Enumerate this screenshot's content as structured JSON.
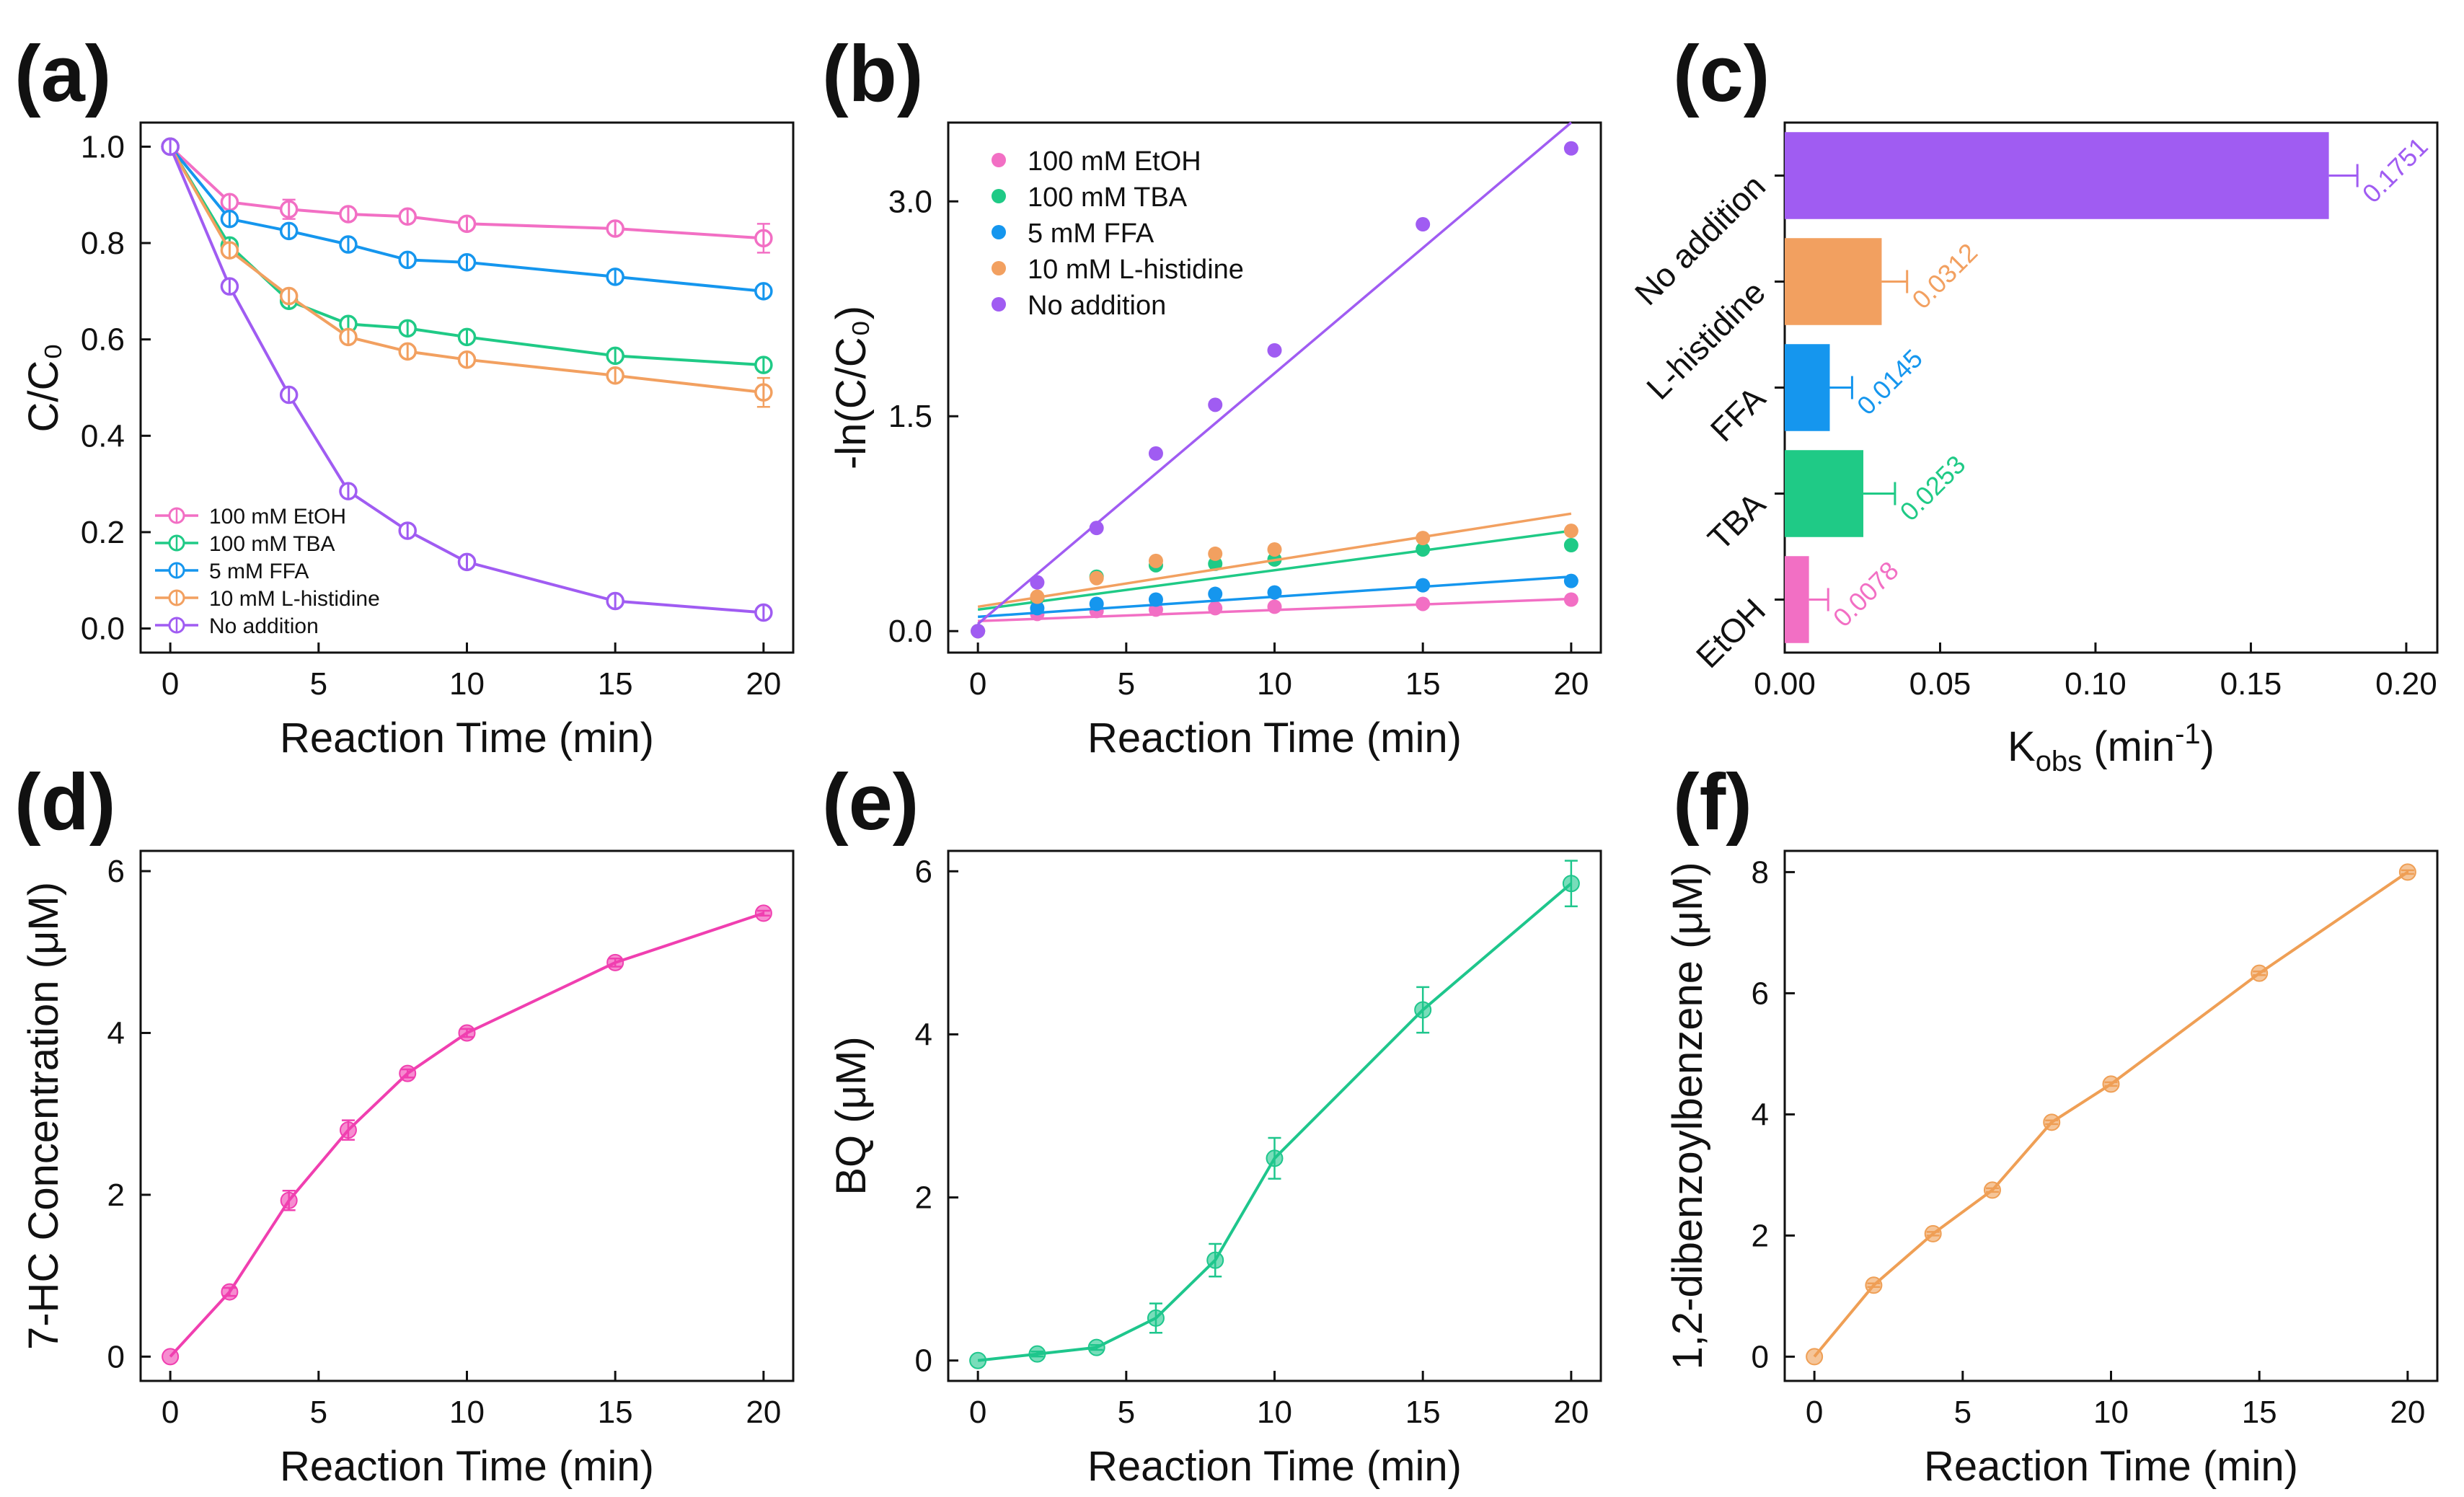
{
  "colors": {
    "etoh": "#f26fc4",
    "tba": "#1fca86",
    "ffa": "#1596ee",
    "his": "#f2a060",
    "none": "#a05cf2",
    "hc": "#f03fb0",
    "bq": "#1ec68c",
    "dbb": "#ef9f55"
  },
  "chart_data": [
    {
      "panel_label": "(a)",
      "type": "line",
      "xlabel": "Reaction Time (min)",
      "ylabel": "C/C₀",
      "xlim": [
        -1,
        21
      ],
      "ylim": [
        -0.05,
        1.05
      ],
      "xticks": [
        0,
        5,
        10,
        15,
        20
      ],
      "yticks": [
        0.0,
        0.2,
        0.4,
        0.6,
        0.8,
        1.0
      ],
      "ytick_labels": [
        "0.0",
        "0.2",
        "0.4",
        "0.6",
        "0.8",
        "1.0"
      ],
      "x": [
        0,
        2,
        4,
        6,
        8,
        10,
        15,
        20
      ],
      "series": [
        {
          "name": "100 mM EtOH",
          "color_key": "etoh",
          "values": [
            1.0,
            0.885,
            0.87,
            0.86,
            0.855,
            0.84,
            0.83,
            0.81
          ],
          "errors": [
            0,
            0.01,
            0.02,
            0.01,
            0.01,
            0.01,
            0.01,
            0.03
          ]
        },
        {
          "name": "100 mM TBA",
          "color_key": "tba",
          "values": [
            1.0,
            0.795,
            0.68,
            0.632,
            0.623,
            0.605,
            0.566,
            0.547
          ],
          "errors": [
            0,
            0.01,
            0.01,
            0.01,
            0.01,
            0.01,
            0.01,
            0.01
          ]
        },
        {
          "name": "5 mM FFA",
          "color_key": "ffa",
          "values": [
            1.0,
            0.85,
            0.825,
            0.797,
            0.765,
            0.76,
            0.73,
            0.7
          ],
          "errors": [
            0,
            0.01,
            0.01,
            0.01,
            0.01,
            0.01,
            0.01,
            0.01
          ]
        },
        {
          "name": "10 mM L-histidine",
          "color_key": "his",
          "values": [
            1.0,
            0.785,
            0.69,
            0.605,
            0.575,
            0.558,
            0.525,
            0.49
          ],
          "errors": [
            0,
            0.01,
            0.01,
            0.01,
            0.01,
            0.01,
            0.01,
            0.03
          ]
        },
        {
          "name": "No addition",
          "color_key": "none",
          "values": [
            1.0,
            0.71,
            0.485,
            0.285,
            0.203,
            0.138,
            0.057,
            0.033
          ],
          "errors": [
            0,
            0.01,
            0.01,
            0.01,
            0.01,
            0.01,
            0.01,
            0.005
          ]
        }
      ],
      "legend_position": "bottom-left"
    },
    {
      "panel_label": "(b)",
      "type": "scatter",
      "xlabel": "Reaction Time (min)",
      "ylabel": "-ln(C/C₀)",
      "xlim": [
        -1,
        21
      ],
      "ylim": [
        -0.15,
        3.55
      ],
      "xticks": [
        0,
        5,
        10,
        15,
        20
      ],
      "yticks": [
        0.0,
        1.5,
        3.0
      ],
      "ytick_labels": [
        "0.0",
        "1.5",
        "3.0"
      ],
      "x": [
        0,
        2,
        4,
        6,
        8,
        10,
        15,
        20
      ],
      "series": [
        {
          "name": "100 mM EtOH",
          "color_key": "etoh",
          "values": [
            0,
            0.12,
            0.14,
            0.15,
            0.16,
            0.17,
            0.19,
            0.22
          ],
          "fit": [
            0.07,
            0.225
          ]
        },
        {
          "name": "100 mM TBA",
          "color_key": "tba",
          "values": [
            0,
            0.23,
            0.38,
            0.46,
            0.47,
            0.5,
            0.57,
            0.6
          ],
          "fit": [
            0.15,
            0.7
          ]
        },
        {
          "name": "5 mM FFA",
          "color_key": "ffa",
          "values": [
            0,
            0.16,
            0.19,
            0.22,
            0.26,
            0.27,
            0.32,
            0.35
          ],
          "fit": [
            0.1,
            0.38
          ]
        },
        {
          "name": "10 mM L-histidine",
          "color_key": "his",
          "values": [
            0,
            0.24,
            0.37,
            0.49,
            0.54,
            0.57,
            0.65,
            0.7
          ],
          "fit": [
            0.17,
            0.82
          ]
        },
        {
          "name": "No addition",
          "color_key": "none",
          "values": [
            0,
            0.34,
            0.72,
            1.24,
            1.58,
            1.96,
            2.84,
            3.37
          ],
          "fit": [
            0.05,
            3.55
          ]
        }
      ],
      "legend_position": "top-left"
    },
    {
      "panel_label": "(c)",
      "type": "bar",
      "orientation": "horizontal",
      "xlabel_main": "K",
      "xlabel_sub": "obs",
      "xlabel_unit": " (min",
      "xlabel_sup": "-1",
      "xlabel_close": ")",
      "xlim": [
        0,
        0.21
      ],
      "xticks": [
        0.0,
        0.05,
        0.1,
        0.15,
        0.2
      ],
      "xtick_labels": [
        "0.00",
        "0.05",
        "0.10",
        "0.15",
        "0.20"
      ],
      "categories": [
        "No addition",
        "L-histidine",
        "FFA",
        "TBA",
        "EtOH"
      ],
      "values": [
        0.1751,
        0.0312,
        0.0145,
        0.0253,
        0.0078
      ],
      "value_labels": [
        "0.1751",
        "0.0312",
        "0.0145",
        "0.0253",
        "0.0078"
      ],
      "errors": [
        0.005,
        0.004,
        0.003,
        0.006,
        0.002
      ],
      "color_keys": [
        "none",
        "his",
        "ffa",
        "tba",
        "etoh"
      ]
    },
    {
      "panel_label": "(d)",
      "type": "line",
      "xlabel": "Reaction Time (min)",
      "ylabel": "7-HC Concentration (μM)",
      "xlim": [
        -1,
        21
      ],
      "ylim": [
        -0.3,
        6.25
      ],
      "xticks": [
        0,
        5,
        10,
        15,
        20
      ],
      "yticks": [
        0,
        2,
        4,
        6
      ],
      "ytick_labels": [
        "0",
        "2",
        "4",
        "6"
      ],
      "x": [
        0,
        2,
        4,
        6,
        8,
        10,
        15,
        20
      ],
      "series": [
        {
          "name": "7-HC",
          "color_key": "hc",
          "values": [
            0,
            0.8,
            1.93,
            2.8,
            3.5,
            4.0,
            4.87,
            5.48
          ],
          "errors": [
            0,
            0.05,
            0.12,
            0.12,
            0.05,
            0.05,
            0.05,
            0.03
          ]
        }
      ]
    },
    {
      "panel_label": "(e)",
      "type": "line",
      "xlabel": "Reaction Time (min)",
      "ylabel": "BQ (μM)",
      "xlim": [
        -1,
        21
      ],
      "ylim": [
        -0.25,
        6.25
      ],
      "xticks": [
        0,
        5,
        10,
        15,
        20
      ],
      "yticks": [
        0,
        2,
        4,
        6
      ],
      "ytick_labels": [
        "0",
        "2",
        "4",
        "6"
      ],
      "x": [
        0,
        2,
        4,
        6,
        8,
        10,
        15,
        20
      ],
      "series": [
        {
          "name": "BQ",
          "color_key": "bq",
          "values": [
            0,
            0.08,
            0.16,
            0.52,
            1.23,
            2.48,
            4.3,
            5.85
          ],
          "errors": [
            0,
            0.03,
            0.03,
            0.18,
            0.2,
            0.25,
            0.28,
            0.28
          ]
        }
      ]
    },
    {
      "panel_label": "(f)",
      "type": "line",
      "xlabel": "Reaction Time (min)",
      "ylabel": "1,2-dibenzoylbenzene (μM)",
      "xlim": [
        -1,
        21
      ],
      "ylim": [
        -0.4,
        8.35
      ],
      "xticks": [
        0,
        5,
        10,
        15,
        20
      ],
      "yticks": [
        0,
        2,
        4,
        6,
        8
      ],
      "ytick_labels": [
        "0",
        "2",
        "4",
        "6",
        "8"
      ],
      "x": [
        0,
        2,
        4,
        6,
        8,
        10,
        15,
        20
      ],
      "series": [
        {
          "name": "1,2-dibenzoylbenzene",
          "color_key": "dbb",
          "values": [
            0,
            1.18,
            2.03,
            2.75,
            3.87,
            4.5,
            6.33,
            8.0
          ],
          "errors": [
            0,
            0.03,
            0.03,
            0.03,
            0.03,
            0.03,
            0.03,
            0.03
          ]
        }
      ]
    }
  ]
}
